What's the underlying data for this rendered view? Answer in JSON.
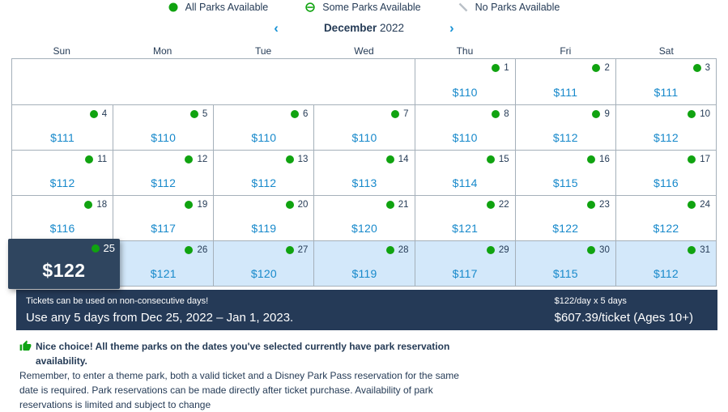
{
  "colors": {
    "accent_blue": "#1789cb",
    "navy": "#253b56",
    "green": "#10a310",
    "range_bg": "#d3e8fa",
    "bar_bg": "#253a57",
    "card_bg": "#2f455f",
    "border": "#a5b0ba"
  },
  "legend": {
    "items": [
      {
        "icon": "all-parks-dot-icon",
        "label": "All Parks Available"
      },
      {
        "icon": "some-parks-partial-icon",
        "label": "Some Parks Available"
      },
      {
        "icon": "no-parks-slash-icon",
        "label": "No Parks Available"
      }
    ]
  },
  "month_nav": {
    "prev": "‹",
    "month": "December",
    "year": "2022",
    "next": "›"
  },
  "weekdays": [
    "Sun",
    "Mon",
    "Tue",
    "Wed",
    "Thu",
    "Fri",
    "Sat"
  ],
  "calendar": {
    "weeks": [
      [
        {
          "empty": true,
          "span": 4
        },
        {
          "day": "1",
          "price": "$110",
          "availability": "all"
        },
        {
          "day": "2",
          "price": "$111",
          "availability": "all"
        },
        {
          "day": "3",
          "price": "$111",
          "availability": "all"
        }
      ],
      [
        {
          "day": "4",
          "price": "$111",
          "availability": "all"
        },
        {
          "day": "5",
          "price": "$110",
          "availability": "all"
        },
        {
          "day": "6",
          "price": "$110",
          "availability": "all"
        },
        {
          "day": "7",
          "price": "$110",
          "availability": "all"
        },
        {
          "day": "8",
          "price": "$110",
          "availability": "all"
        },
        {
          "day": "9",
          "price": "$112",
          "availability": "all"
        },
        {
          "day": "10",
          "price": "$112",
          "availability": "all"
        }
      ],
      [
        {
          "day": "11",
          "price": "$112",
          "availability": "all"
        },
        {
          "day": "12",
          "price": "$112",
          "availability": "all"
        },
        {
          "day": "13",
          "price": "$112",
          "availability": "all"
        },
        {
          "day": "14",
          "price": "$113",
          "availability": "all"
        },
        {
          "day": "15",
          "price": "$114",
          "availability": "all"
        },
        {
          "day": "16",
          "price": "$115",
          "availability": "all"
        },
        {
          "day": "17",
          "price": "$116",
          "availability": "all"
        }
      ],
      [
        {
          "day": "18",
          "price": "$116",
          "availability": "all"
        },
        {
          "day": "19",
          "price": "$117",
          "availability": "all"
        },
        {
          "day": "20",
          "price": "$119",
          "availability": "all"
        },
        {
          "day": "21",
          "price": "$120",
          "availability": "all"
        },
        {
          "day": "22",
          "price": "$121",
          "availability": "all"
        },
        {
          "day": "23",
          "price": "$122",
          "availability": "all"
        },
        {
          "day": "24",
          "price": "$122",
          "availability": "all"
        }
      ],
      [
        {
          "day": "25",
          "price": "$122",
          "availability": "all",
          "state": "selected"
        },
        {
          "day": "26",
          "price": "$121",
          "availability": "all",
          "state": "range"
        },
        {
          "day": "27",
          "price": "$120",
          "availability": "all",
          "state": "range"
        },
        {
          "day": "28",
          "price": "$119",
          "availability": "all",
          "state": "range"
        },
        {
          "day": "29",
          "price": "$117",
          "availability": "all",
          "state": "range"
        },
        {
          "day": "30",
          "price": "$115",
          "availability": "all",
          "state": "range"
        },
        {
          "day": "31",
          "price": "$112",
          "availability": "all",
          "state": "range"
        }
      ]
    ]
  },
  "summary_bar": {
    "note": "Tickets can be used on non-consecutive days!",
    "usage": "Use any 5 days from Dec 25, 2022 – Jan 1, 2023.",
    "rate": "$122/day x 5 days",
    "total": "$607.39/ticket (Ages 10+)"
  },
  "availability_note": {
    "headline": "Nice choice! All theme parks on the dates you've selected currently have park reservation availability.",
    "body": "Remember, to enter a theme park, both a valid ticket and a Disney Park Pass reservation for the same date is required. Park reservations can be made directly after ticket purchase. Availability of park reservations is limited and subject to change"
  }
}
